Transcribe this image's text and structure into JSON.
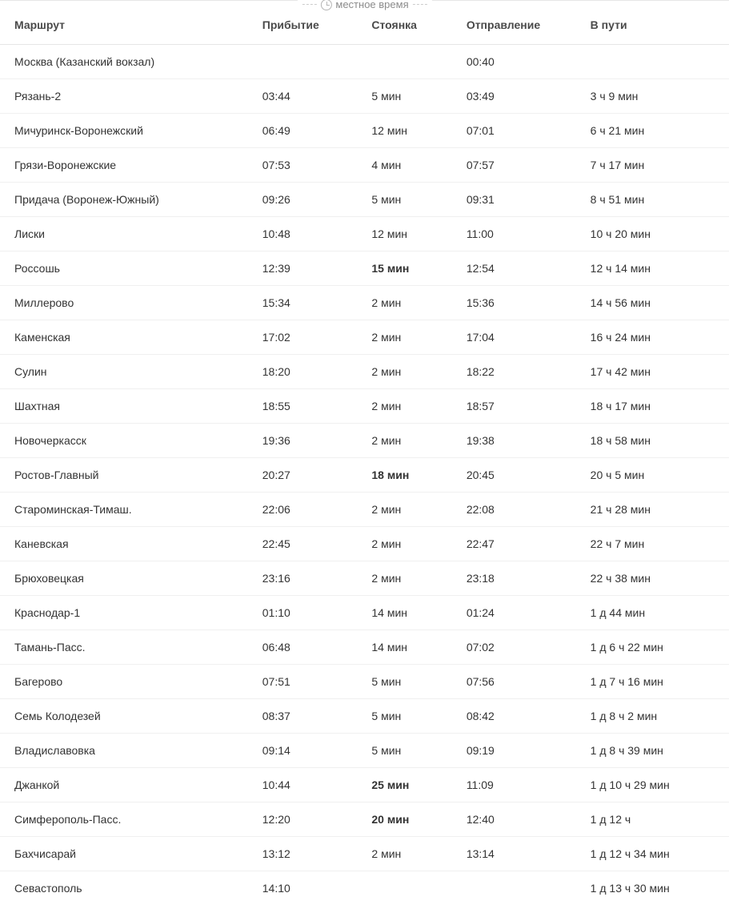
{
  "localTimeLabel": "местное время",
  "columns": {
    "route": "Маршрут",
    "arrival": "Прибытие",
    "stop": "Стоянка",
    "departure": "Отправление",
    "duration": "В пути"
  },
  "colors": {
    "border": "#e6e6e6",
    "rowBorder": "#f0f0f0",
    "text": "#333333",
    "muted": "#8c8c8c",
    "background": "#ffffff"
  },
  "rows": [
    {
      "route": "Москва (Казанский вокзал)",
      "arrival": "",
      "stop": "",
      "stopBold": false,
      "departure": "00:40",
      "duration": ""
    },
    {
      "route": "Рязань-2",
      "arrival": "03:44",
      "stop": "5 мин",
      "stopBold": false,
      "departure": "03:49",
      "duration": "3 ч 9 мин"
    },
    {
      "route": "Мичуринск-Воронежский",
      "arrival": "06:49",
      "stop": "12 мин",
      "stopBold": false,
      "departure": "07:01",
      "duration": "6 ч 21 мин"
    },
    {
      "route": "Грязи-Воронежские",
      "arrival": "07:53",
      "stop": "4 мин",
      "stopBold": false,
      "departure": "07:57",
      "duration": "7 ч 17 мин"
    },
    {
      "route": "Придача (Воронеж-Южный)",
      "arrival": "09:26",
      "stop": "5 мин",
      "stopBold": false,
      "departure": "09:31",
      "duration": "8 ч 51 мин"
    },
    {
      "route": "Лиски",
      "arrival": "10:48",
      "stop": "12 мин",
      "stopBold": false,
      "departure": "11:00",
      "duration": "10 ч 20 мин"
    },
    {
      "route": "Россошь",
      "arrival": "12:39",
      "stop": "15 мин",
      "stopBold": true,
      "departure": "12:54",
      "duration": "12 ч 14 мин"
    },
    {
      "route": "Миллерово",
      "arrival": "15:34",
      "stop": "2 мин",
      "stopBold": false,
      "departure": "15:36",
      "duration": "14 ч 56 мин"
    },
    {
      "route": "Каменская",
      "arrival": "17:02",
      "stop": "2 мин",
      "stopBold": false,
      "departure": "17:04",
      "duration": "16 ч 24 мин"
    },
    {
      "route": "Сулин",
      "arrival": "18:20",
      "stop": "2 мин",
      "stopBold": false,
      "departure": "18:22",
      "duration": "17 ч 42 мин"
    },
    {
      "route": "Шахтная",
      "arrival": "18:55",
      "stop": "2 мин",
      "stopBold": false,
      "departure": "18:57",
      "duration": "18 ч 17 мин"
    },
    {
      "route": "Новочеркасск",
      "arrival": "19:36",
      "stop": "2 мин",
      "stopBold": false,
      "departure": "19:38",
      "duration": "18 ч 58 мин"
    },
    {
      "route": "Ростов-Главный",
      "arrival": "20:27",
      "stop": "18 мин",
      "stopBold": true,
      "departure": "20:45",
      "duration": "20 ч 5 мин"
    },
    {
      "route": "Староминская-Тимаш.",
      "arrival": "22:06",
      "stop": "2 мин",
      "stopBold": false,
      "departure": "22:08",
      "duration": "21 ч 28 мин"
    },
    {
      "route": "Каневская",
      "arrival": "22:45",
      "stop": "2 мин",
      "stopBold": false,
      "departure": "22:47",
      "duration": "22 ч 7 мин"
    },
    {
      "route": "Брюховецкая",
      "arrival": "23:16",
      "stop": "2 мин",
      "stopBold": false,
      "departure": "23:18",
      "duration": "22 ч 38 мин"
    },
    {
      "route": "Краснодар-1",
      "arrival": "01:10",
      "stop": "14 мин",
      "stopBold": false,
      "departure": "01:24",
      "duration": "1 д 44 мин"
    },
    {
      "route": "Тамань-Пасс.",
      "arrival": "06:48",
      "stop": "14 мин",
      "stopBold": false,
      "departure": "07:02",
      "duration": "1 д 6 ч 22 мин"
    },
    {
      "route": "Багерово",
      "arrival": "07:51",
      "stop": "5 мин",
      "stopBold": false,
      "departure": "07:56",
      "duration": "1 д 7 ч 16 мин"
    },
    {
      "route": "Семь Колодезей",
      "arrival": "08:37",
      "stop": "5 мин",
      "stopBold": false,
      "departure": "08:42",
      "duration": "1 д 8 ч 2 мин"
    },
    {
      "route": "Владиславовка",
      "arrival": "09:14",
      "stop": "5 мин",
      "stopBold": false,
      "departure": "09:19",
      "duration": "1 д 8 ч 39 мин"
    },
    {
      "route": "Джанкой",
      "arrival": "10:44",
      "stop": "25 мин",
      "stopBold": true,
      "departure": "11:09",
      "duration": "1 д 10 ч 29 мин"
    },
    {
      "route": "Симферополь-Пасс.",
      "arrival": "12:20",
      "stop": "20 мин",
      "stopBold": true,
      "departure": "12:40",
      "duration": "1 д 12 ч"
    },
    {
      "route": "Бахчисарай",
      "arrival": "13:12",
      "stop": "2 мин",
      "stopBold": false,
      "departure": "13:14",
      "duration": "1 д 12 ч 34 мин"
    },
    {
      "route": "Севастополь",
      "arrival": "14:10",
      "stop": "",
      "stopBold": false,
      "departure": "",
      "duration": "1 д 13 ч 30 мин"
    }
  ]
}
